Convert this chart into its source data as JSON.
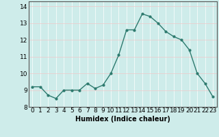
{
  "x": [
    0,
    1,
    2,
    3,
    4,
    5,
    6,
    7,
    8,
    9,
    10,
    11,
    12,
    13,
    14,
    15,
    16,
    17,
    18,
    19,
    20,
    21,
    22,
    23
  ],
  "y": [
    9.2,
    9.2,
    8.7,
    8.5,
    9.0,
    9.0,
    9.0,
    9.4,
    9.1,
    9.3,
    10.0,
    11.1,
    12.6,
    12.6,
    13.55,
    13.4,
    13.0,
    12.5,
    12.2,
    12.0,
    11.4,
    10.0,
    9.4,
    8.6
  ],
  "line_color": "#2d7a6e",
  "marker": "o",
  "marker_size": 2,
  "line_width": 1.0,
  "bg_color": "#ceecea",
  "grid_color": "#f0c8c8",
  "grid_color2": "#ffffff",
  "xlabel": "Humidex (Indice chaleur)",
  "xlabel_fontsize": 7,
  "xlim": [
    -0.5,
    23.5
  ],
  "ylim": [
    8.0,
    14.3
  ],
  "yticks": [
    8,
    9,
    10,
    11,
    12,
    13,
    14
  ],
  "xticks": [
    0,
    1,
    2,
    3,
    4,
    5,
    6,
    7,
    8,
    9,
    10,
    11,
    12,
    13,
    14,
    15,
    16,
    17,
    18,
    19,
    20,
    21,
    22,
    23
  ],
  "tick_fontsize": 6.5
}
